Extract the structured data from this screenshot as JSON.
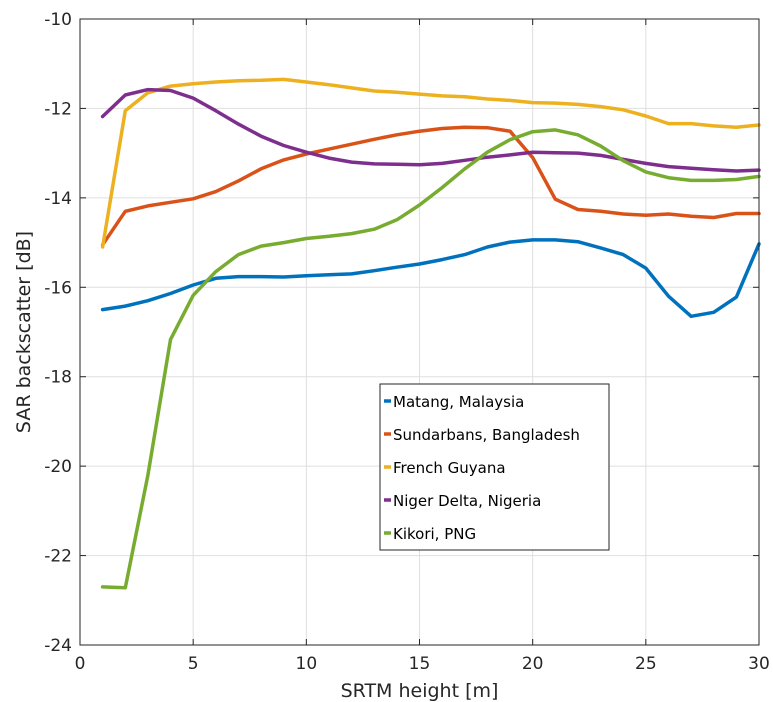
{
  "chart_data": {
    "type": "line",
    "title": "",
    "xlabel": "SRTM height  [m]",
    "ylabel": "SAR backscatter  [dB]",
    "xlim": [
      0,
      30
    ],
    "ylim": [
      -24,
      -10
    ],
    "xticks": [
      0,
      5,
      10,
      15,
      20,
      25,
      30
    ],
    "yticks": [
      -24,
      -22,
      -20,
      -18,
      -16,
      -14,
      -12,
      -10
    ],
    "grid": true,
    "legend_position": "center-right",
    "x": [
      1,
      2,
      3,
      4,
      5,
      6,
      7,
      8,
      9,
      10,
      11,
      12,
      13,
      14,
      15,
      16,
      17,
      18,
      19,
      20,
      21,
      22,
      23,
      24,
      25,
      26,
      27,
      28,
      29,
      30
    ],
    "series": [
      {
        "name": "Matang, Malaysia",
        "color": "#0072BD",
        "values": [
          -16.5,
          -16.42,
          -16.3,
          -16.14,
          -15.95,
          -15.8,
          -15.76,
          -15.76,
          -15.77,
          -15.74,
          -15.72,
          -15.7,
          -15.63,
          -15.55,
          -15.48,
          -15.38,
          -15.27,
          -15.1,
          -14.99,
          -14.94,
          -14.94,
          -14.98,
          -15.12,
          -15.27,
          -15.57,
          -16.2,
          -16.65,
          -16.56,
          -16.22,
          -15.03
        ]
      },
      {
        "name": "Sundarbans, Bangladesh",
        "color": "#D95319",
        "values": [
          -15.05,
          -14.3,
          -14.18,
          -14.1,
          -14.02,
          -13.86,
          -13.62,
          -13.35,
          -13.15,
          -13.02,
          -12.91,
          -12.8,
          -12.69,
          -12.59,
          -12.51,
          -12.45,
          -12.42,
          -12.43,
          -12.51,
          -13.1,
          -14.03,
          -14.26,
          -14.3,
          -14.36,
          -14.39,
          -14.36,
          -14.41,
          -14.44,
          -14.35,
          -14.35
        ]
      },
      {
        "name": "French Guyana",
        "color": "#EDB120",
        "values": [
          -15.1,
          -12.05,
          -11.65,
          -11.5,
          -11.45,
          -11.41,
          -11.38,
          -11.37,
          -11.35,
          -11.41,
          -11.47,
          -11.54,
          -11.61,
          -11.64,
          -11.68,
          -11.72,
          -11.74,
          -11.79,
          -11.82,
          -11.87,
          -11.88,
          -11.91,
          -11.96,
          -12.03,
          -12.17,
          -12.34,
          -12.34,
          -12.39,
          -12.42,
          -12.37
        ]
      },
      {
        "name": "Niger Delta, Nigeria",
        "color": "#7E2F8E",
        "values": [
          -12.18,
          -11.7,
          -11.58,
          -11.6,
          -11.77,
          -12.05,
          -12.35,
          -12.62,
          -12.83,
          -12.98,
          -13.11,
          -13.2,
          -13.24,
          -13.25,
          -13.26,
          -13.23,
          -13.16,
          -13.09,
          -13.04,
          -12.98,
          -12.99,
          -13.0,
          -13.05,
          -13.14,
          -13.23,
          -13.3,
          -13.34,
          -13.37,
          -13.4,
          -13.38
        ]
      },
      {
        "name": "Kikori, PNG",
        "color": "#77AC30",
        "values": [
          -22.7,
          -22.72,
          -20.2,
          -17.17,
          -16.18,
          -15.65,
          -15.27,
          -15.08,
          -15.0,
          -14.91,
          -14.86,
          -14.8,
          -14.7,
          -14.49,
          -14.16,
          -13.77,
          -13.35,
          -12.98,
          -12.7,
          -12.52,
          -12.48,
          -12.59,
          -12.84,
          -13.17,
          -13.42,
          -13.55,
          -13.61,
          -13.61,
          -13.59,
          -13.52
        ]
      }
    ]
  }
}
